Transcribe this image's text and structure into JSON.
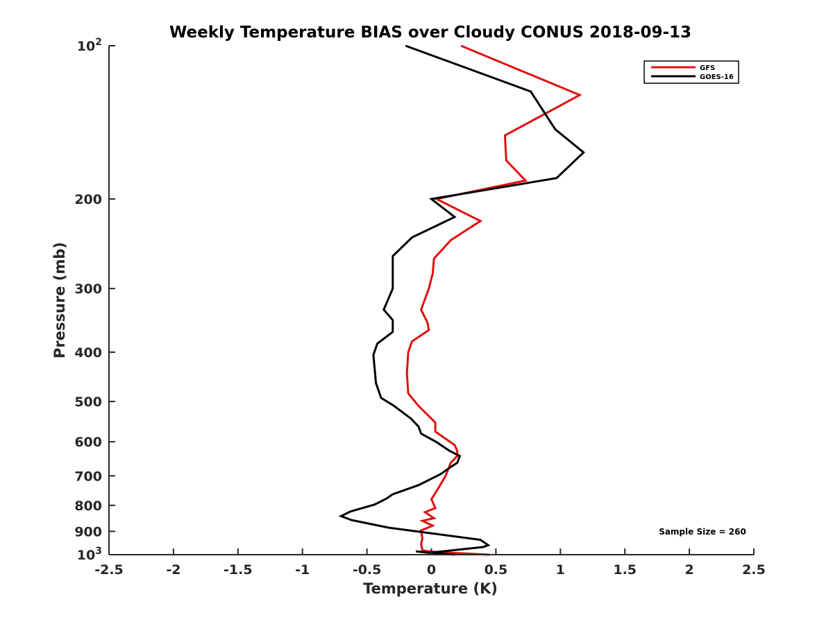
{
  "chart_data": {
    "type": "line",
    "title": "Weekly Temperature BIAS over Cloudy CONUS 2018-09-13",
    "xlabel": "Temperature (K)",
    "ylabel": "Pressure (mb)",
    "xlim": [
      -2.5,
      2.5
    ],
    "ylim": [
      100,
      1000
    ],
    "yscale": "log",
    "y_reversed": true,
    "grid": false,
    "legend_position": "top-right",
    "x_ticks": [
      -2.5,
      -2,
      -1.5,
      -1,
      -0.5,
      0,
      0.5,
      1,
      1.5,
      2,
      2.5
    ],
    "x_tick_labels": [
      "-2.5",
      "-2",
      "-1.5",
      "-1",
      "-0.5",
      "0",
      "0.5",
      "1",
      "1.5",
      "2",
      "2.5"
    ],
    "y_ticks": [
      {
        "value": 100,
        "label": "10",
        "sup": "2"
      },
      {
        "value": 200,
        "label": "200",
        "sup": ""
      },
      {
        "value": 300,
        "label": "300",
        "sup": ""
      },
      {
        "value": 400,
        "label": "400",
        "sup": ""
      },
      {
        "value": 500,
        "label": "500",
        "sup": ""
      },
      {
        "value": 600,
        "label": "600",
        "sup": ""
      },
      {
        "value": 700,
        "label": "700",
        "sup": ""
      },
      {
        "value": 800,
        "label": "800",
        "sup": ""
      },
      {
        "value": 900,
        "label": "900",
        "sup": ""
      },
      {
        "value": 1000,
        "label": "10",
        "sup": "3"
      }
    ],
    "annotation": "Sample Size = 260",
    "series": [
      {
        "name": "GFS",
        "color": "#e01010",
        "points": [
          [
            0.23,
            100
          ],
          [
            1.15,
            125
          ],
          [
            0.57,
            150
          ],
          [
            0.58,
            168
          ],
          [
            0.73,
            184
          ],
          [
            0.04,
            200
          ],
          [
            0.38,
            221
          ],
          [
            0.15,
            241
          ],
          [
            0.02,
            262
          ],
          [
            0.01,
            280
          ],
          [
            -0.02,
            300
          ],
          [
            -0.08,
            330
          ],
          [
            -0.03,
            350
          ],
          [
            -0.02,
            362
          ],
          [
            -0.15,
            381
          ],
          [
            -0.18,
            400
          ],
          [
            -0.19,
            440
          ],
          [
            -0.18,
            482
          ],
          [
            -0.1,
            510
          ],
          [
            0.03,
            550
          ],
          [
            0.03,
            573
          ],
          [
            0.18,
            609
          ],
          [
            0.2,
            625
          ],
          [
            0.2,
            640
          ],
          [
            0.15,
            660
          ],
          [
            0.11,
            700
          ],
          [
            0.06,
            736
          ],
          [
            0.0,
            778
          ],
          [
            0.03,
            810
          ],
          [
            -0.05,
            825
          ],
          [
            0.02,
            848
          ],
          [
            -0.07,
            858
          ],
          [
            0.01,
            877
          ],
          [
            -0.08,
            896
          ],
          [
            -0.07,
            930
          ],
          [
            -0.08,
            953
          ],
          [
            -0.07,
            980
          ],
          [
            0.0,
            987
          ],
          [
            0.45,
            1000
          ]
        ]
      },
      {
        "name": "GOES-16",
        "color": "#000000",
        "points": [
          [
            -0.2,
            100
          ],
          [
            0.77,
            123
          ],
          [
            0.96,
            146
          ],
          [
            1.18,
            162
          ],
          [
            0.97,
            182
          ],
          [
            0.0,
            200
          ],
          [
            0.18,
            217
          ],
          [
            -0.15,
            238
          ],
          [
            -0.3,
            259
          ],
          [
            -0.3,
            300
          ],
          [
            -0.37,
            330
          ],
          [
            -0.3,
            346
          ],
          [
            -0.3,
            365
          ],
          [
            -0.42,
            385
          ],
          [
            -0.45,
            405
          ],
          [
            -0.43,
            460
          ],
          [
            -0.39,
            492
          ],
          [
            -0.29,
            510
          ],
          [
            -0.16,
            540
          ],
          [
            -0.1,
            560
          ],
          [
            -0.08,
            578
          ],
          [
            0.04,
            601
          ],
          [
            0.14,
            625
          ],
          [
            0.22,
            640
          ],
          [
            0.2,
            660
          ],
          [
            0.16,
            670
          ],
          [
            0.07,
            695
          ],
          [
            -0.1,
            730
          ],
          [
            -0.3,
            761
          ],
          [
            -0.35,
            776
          ],
          [
            -0.44,
            797
          ],
          [
            -0.63,
            823
          ],
          [
            -0.7,
            840
          ],
          [
            -0.62,
            855
          ],
          [
            -0.33,
            885
          ],
          [
            0.38,
            935
          ],
          [
            0.44,
            958
          ],
          [
            0.4,
            966
          ],
          [
            -0.02,
            992
          ],
          [
            -0.12,
            985
          ],
          [
            0.18,
            1000
          ]
        ]
      }
    ]
  }
}
